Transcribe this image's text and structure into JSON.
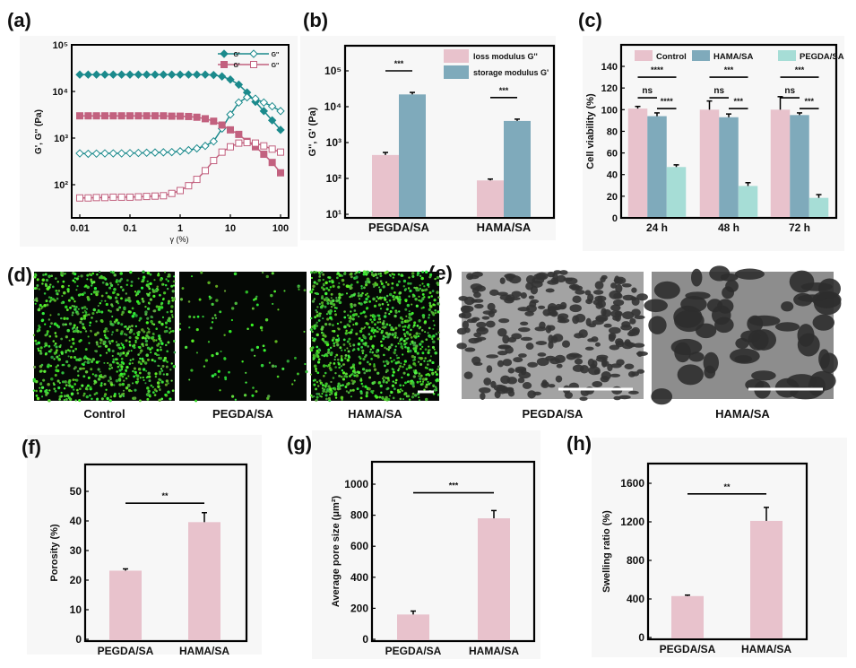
{
  "panels": {
    "labels": [
      "(a)",
      "(b)",
      "(c)",
      "(d)",
      "(e)",
      "(f)",
      "(g)",
      "(h)"
    ]
  },
  "images": {
    "d_captions": [
      "Control",
      "PEGDA/SA",
      "HAMA/SA"
    ],
    "e_captions": [
      "PEGDA/SA",
      "HAMA/SA"
    ]
  },
  "colors": {
    "pink": "#e8c2cc",
    "teal_bar": "#7faabb",
    "light_teal": "#a6ddd6",
    "teal_line": "#1b8a8c",
    "pink_line": "#c2617f"
  },
  "chart_data": [
    {
      "panel": "(a)",
      "type": "line",
      "xlabel": "γ (%)",
      "ylabel": "G', G'' (Pa)",
      "xscale": "log",
      "yscale": "log",
      "xlim": [
        0.01,
        100
      ],
      "ylim": [
        20,
        100000
      ],
      "xticks": [
        "0.01",
        "0.1",
        "1",
        "10",
        "100"
      ],
      "xtick_values": [
        0.01,
        0.1,
        1,
        10,
        100
      ],
      "yticks": [
        "10²",
        "10³",
        "10⁴",
        "10⁵"
      ],
      "ytick_values": [
        100,
        1000,
        10000,
        100000
      ],
      "legend": "top-right",
      "x": [
        0.01,
        0.0147,
        0.0215,
        0.0316,
        0.0464,
        0.0681,
        0.1,
        0.147,
        0.215,
        0.316,
        0.464,
        0.681,
        1,
        1.47,
        2.15,
        3.16,
        4.64,
        6.81,
        10,
        14.7,
        21.5,
        31.6,
        46.4,
        68.1,
        100
      ],
      "series": [
        {
          "name": "G'",
          "group": "PEGDA/SA",
          "color": "#1b8a8c",
          "marker": "diamond",
          "filled": true,
          "y": [
            23000,
            23000,
            23000,
            23000,
            23000,
            23000,
            23000,
            23000,
            23000,
            23000,
            23000,
            23000,
            23000,
            23000,
            23000,
            23000,
            22500,
            21000,
            18000,
            14000,
            9500,
            6000,
            3800,
            2400,
            1500
          ]
        },
        {
          "name": "G''",
          "group": "PEGDA/SA",
          "color": "#1b8a8c",
          "marker": "diamond",
          "filled": false,
          "y": [
            470,
            460,
            465,
            470,
            470,
            470,
            475,
            480,
            485,
            490,
            495,
            500,
            520,
            550,
            600,
            680,
            850,
            1600,
            3200,
            5800,
            7500,
            7000,
            5800,
            4800,
            3800
          ]
        },
        {
          "name": "G'",
          "group": "HAMA/SA",
          "color": "#c2617f",
          "marker": "square",
          "filled": true,
          "y": [
            3000,
            3000,
            3000,
            3000,
            3000,
            3000,
            3000,
            3000,
            3000,
            3000,
            3000,
            2950,
            2950,
            2900,
            2800,
            2600,
            2300,
            1900,
            1500,
            1200,
            850,
            650,
            450,
            300,
            180
          ]
        },
        {
          "name": "G''",
          "group": "HAMA/SA",
          "color": "#c2617f",
          "marker": "square",
          "filled": false,
          "y": [
            52,
            52,
            53,
            53,
            54,
            54,
            54,
            55,
            56,
            57,
            58,
            65,
            75,
            95,
            130,
            200,
            330,
            500,
            650,
            780,
            800,
            780,
            680,
            580,
            500
          ]
        }
      ]
    },
    {
      "panel": "(b)",
      "type": "bar",
      "xlabel": "",
      "ylabel": "G'', G' (Pa)",
      "yscale": "log",
      "ylim": [
        10,
        100000
      ],
      "yticks": [
        "10¹",
        "10²",
        "10³",
        "10⁴",
        "10⁵"
      ],
      "ytick_values": [
        10,
        100,
        1000,
        10000,
        100000
      ],
      "categories": [
        "PEGDA/SA",
        "HAMA/SA"
      ],
      "legend": "top-right",
      "series": [
        {
          "name": "loss modulus G''",
          "color": "#e8c2cc",
          "values": [
            450,
            88
          ],
          "errors": [
            80,
            8
          ]
        },
        {
          "name": "storage modulus G'",
          "color": "#7faabb",
          "values": [
            22000,
            4000
          ],
          "errors": [
            3000,
            500
          ]
        }
      ],
      "significance": [
        {
          "from": [
            0,
            0
          ],
          "to": [
            0,
            1
          ],
          "y": 100000,
          "label": "***"
        },
        {
          "from": [
            1,
            0
          ],
          "to": [
            1,
            1
          ],
          "y": 18000,
          "label": "***"
        }
      ]
    },
    {
      "panel": "(c)",
      "type": "bar",
      "xlabel": "",
      "ylabel": "Cell viability (%)",
      "ylim": [
        0,
        160
      ],
      "yticks": [
        "0",
        "20",
        "40",
        "60",
        "80",
        "100",
        "120",
        "140"
      ],
      "ytick_values": [
        0,
        20,
        40,
        60,
        80,
        100,
        120,
        140
      ],
      "categories": [
        "24 h",
        "48 h",
        "72 h"
      ],
      "legend": "top",
      "series": [
        {
          "name": "Control",
          "color": "#e8c2cc",
          "values": [
            101,
            100,
            100
          ],
          "errors": [
            2,
            8,
            12
          ]
        },
        {
          "name": "HAMA/SA",
          "color": "#7faabb",
          "values": [
            94,
            93,
            95
          ],
          "errors": [
            3,
            3,
            2
          ]
        },
        {
          "name": "PEGDA/SA",
          "color": "#a6ddd6",
          "values": [
            47,
            29.5,
            18.5
          ],
          "errors": [
            2,
            3,
            3
          ]
        }
      ],
      "significance": [
        {
          "from": [
            0,
            0
          ],
          "to": [
            0,
            2
          ],
          "y": 130,
          "label": "****"
        },
        {
          "from": [
            0,
            0
          ],
          "to": [
            0,
            1
          ],
          "y": 111,
          "label": "ns"
        },
        {
          "from": [
            0,
            1
          ],
          "to": [
            0,
            2
          ],
          "y": 101,
          "label": "****"
        },
        {
          "from": [
            1,
            0
          ],
          "to": [
            1,
            2
          ],
          "y": 130,
          "label": "***"
        },
        {
          "from": [
            1,
            0
          ],
          "to": [
            1,
            1
          ],
          "y": 111,
          "label": "ns"
        },
        {
          "from": [
            1,
            1
          ],
          "to": [
            1,
            2
          ],
          "y": 101,
          "label": "***"
        },
        {
          "from": [
            2,
            0
          ],
          "to": [
            2,
            2
          ],
          "y": 130,
          "label": "***"
        },
        {
          "from": [
            2,
            0
          ],
          "to": [
            2,
            1
          ],
          "y": 111,
          "label": "ns"
        },
        {
          "from": [
            2,
            1
          ],
          "to": [
            2,
            2
          ],
          "y": 101,
          "label": "***"
        }
      ]
    },
    {
      "panel": "(f)",
      "type": "bar",
      "xlabel": "",
      "ylabel": "Porosity (%)",
      "ylim": [
        0,
        59
      ],
      "yticks": [
        "0",
        "10",
        "20",
        "30",
        "40",
        "50"
      ],
      "ytick_values": [
        0,
        10,
        20,
        30,
        40,
        50
      ],
      "categories": [
        "PEGDA/SA",
        "HAMA/SA"
      ],
      "series": [
        {
          "name": "Porosity",
          "color": "#e8c2cc",
          "values": [
            23.2,
            39.6
          ],
          "errors": [
            0.6,
            3.2
          ]
        }
      ],
      "significance": [
        {
          "from": [
            0,
            0
          ],
          "to": [
            1,
            0
          ],
          "y": 46,
          "label": "**"
        }
      ]
    },
    {
      "panel": "(g)",
      "type": "bar",
      "xlabel": "",
      "ylabel": "Average pore size (μm²)",
      "ylim": [
        0,
        1140
      ],
      "yticks": [
        "0",
        "200",
        "400",
        "600",
        "800",
        "1000"
      ],
      "ytick_values": [
        0,
        200,
        400,
        600,
        800,
        1000
      ],
      "categories": [
        "PEGDA/SA",
        "HAMA/SA"
      ],
      "series": [
        {
          "name": "Average pore size",
          "color": "#e8c2cc",
          "values": [
            160,
            780
          ],
          "errors": [
            22,
            50
          ]
        }
      ],
      "significance": [
        {
          "from": [
            0,
            0
          ],
          "to": [
            1,
            0
          ],
          "y": 945,
          "label": "***"
        }
      ]
    },
    {
      "panel": "(h)",
      "type": "bar",
      "xlabel": "",
      "ylabel": "Swelling ratio (%)",
      "ylim": [
        0,
        1800
      ],
      "yticks": [
        "0",
        "400",
        "800",
        "1200",
        "1600"
      ],
      "ytick_values": [
        0,
        400,
        800,
        1200,
        1600
      ],
      "categories": [
        "PEGDA/SA",
        "HAMA/SA"
      ],
      "series": [
        {
          "name": "Swelling ratio",
          "color": "#e8c2cc",
          "values": [
            430,
            1210
          ],
          "errors": [
            10,
            140
          ]
        }
      ],
      "significance": [
        {
          "from": [
            0,
            0
          ],
          "to": [
            1,
            0
          ],
          "y": 1490,
          "label": "**"
        }
      ]
    }
  ]
}
